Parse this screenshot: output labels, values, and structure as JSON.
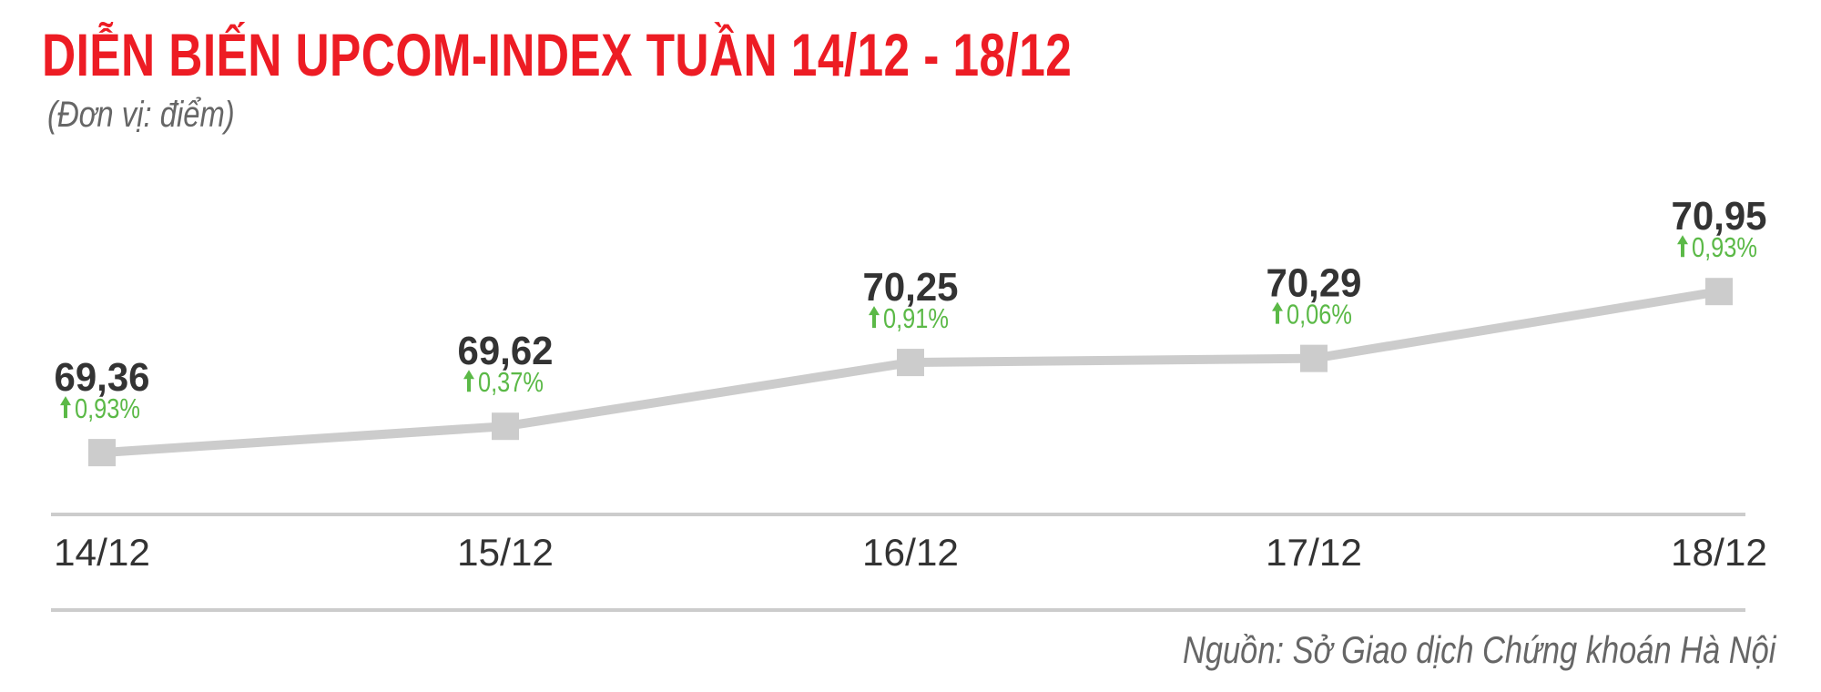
{
  "header": {
    "title": "DIỄN BIẾN UPCOM-INDEX TUẦN 14/12 - 18/12",
    "subtitle": "(Đơn vị: điểm)"
  },
  "footer": {
    "source": "Nguồn: Sở Giao dịch Chứng khoán Hà Nội"
  },
  "colors": {
    "title": "#ED1C24",
    "line": "#CCCCCC",
    "value_label": "#333333",
    "change_up": "#5BB947",
    "axis": "#CCCCCC"
  },
  "chart_data": {
    "type": "line",
    "title": "DIỄN BIẾN UPCOM-INDEX TUẦN 14/12 - 18/12",
    "ylabel": "(Đơn vị: điểm)",
    "xlabel": "",
    "categories": [
      "14/12",
      "15/12",
      "16/12",
      "17/12",
      "18/12"
    ],
    "values": [
      69.36,
      69.62,
      70.25,
      70.29,
      70.95
    ],
    "value_labels": [
      "69,36",
      "69,62",
      "70,25",
      "70,29",
      "70,95"
    ],
    "change_labels": [
      "0,93%",
      "0,37%",
      "0,91%",
      "0,06%",
      "0,93%"
    ],
    "change_direction": [
      "up",
      "up",
      "up",
      "up",
      "up"
    ],
    "marker": "square",
    "ylim": [
      68.75,
      71.5
    ],
    "grid": false,
    "y_axis_visible": false,
    "legend": "none"
  }
}
